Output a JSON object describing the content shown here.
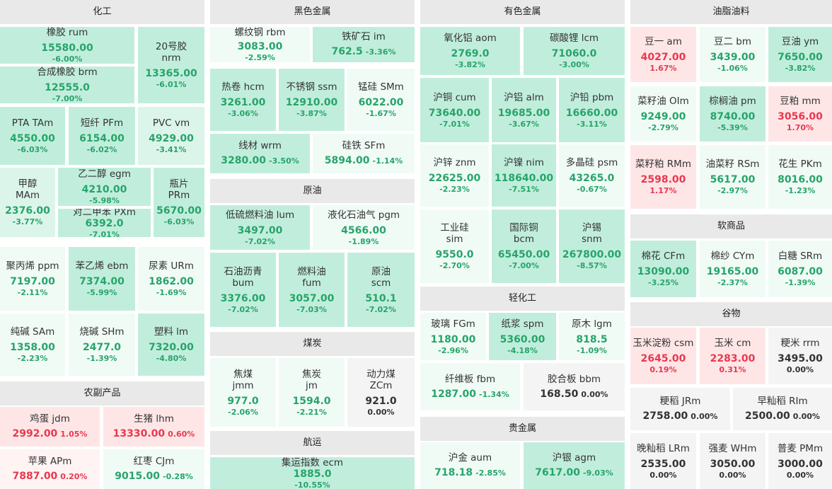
{
  "sections": {
    "chem": "化工",
    "agri": "农副产品",
    "ferrous": "黑色金属",
    "crude": "原油",
    "coal": "煤炭",
    "shipping": "航运",
    "nonferrous": "有色金属",
    "light": "轻化工",
    "precious": "贵金属",
    "oils": "油脂油料",
    "softs": "软商品",
    "grains": "谷物"
  },
  "tiles": [
    {
      "id": "rum",
      "name": "橡胶  rum",
      "price": "15580.00",
      "change": "-6.00%"
    },
    {
      "id": "nrm",
      "name": "20号胶",
      "code": "nrm",
      "price": "13365.00",
      "change": "-6.01%"
    },
    {
      "id": "brm",
      "name": "合成橡胶  brm",
      "price": "12555.0",
      "change": "-7.00%"
    },
    {
      "id": "TAm",
      "name": "PTA  TAm",
      "price": "4550.00",
      "change": "-6.03%"
    },
    {
      "id": "PFm",
      "name": "短纤  PFm",
      "price": "6154.00",
      "change": "-6.02%"
    },
    {
      "id": "vm",
      "name": "PVC  vm",
      "price": "4929.00",
      "change": "-3.41%"
    },
    {
      "id": "MAm",
      "name": "甲醇",
      "code": "MAm",
      "price": "2376.00",
      "change": "-3.77%"
    },
    {
      "id": "egm",
      "name": "乙二醇  egm",
      "price": "4210.00",
      "change": "-5.98%"
    },
    {
      "id": "PRm",
      "name": "瓶片",
      "code": "PRm",
      "price": "5670.00",
      "change": "-6.03%"
    },
    {
      "id": "PXm",
      "name": "对二甲苯  PXm",
      "price": "6392.0",
      "change": "-7.01%"
    },
    {
      "id": "ppm",
      "name": "聚丙烯  ppm",
      "price": "7197.00",
      "change": "-2.11%"
    },
    {
      "id": "ebm",
      "name": "苯乙烯  ebm",
      "price": "7374.00",
      "change": "-5.99%"
    },
    {
      "id": "URm",
      "name": "尿素  URm",
      "price": "1862.00",
      "change": "-1.69%"
    },
    {
      "id": "SAm",
      "name": "纯碱  SAm",
      "price": "1358.00",
      "change": "-2.23%"
    },
    {
      "id": "SHm",
      "name": "烧碱  SHm",
      "price": "2477.0",
      "change": "-1.39%"
    },
    {
      "id": "lm",
      "name": "塑料  lm",
      "price": "7320.00",
      "change": "-4.80%"
    },
    {
      "id": "jdm",
      "name": "鸡蛋  jdm",
      "price": "2992.00",
      "change": "1.05%"
    },
    {
      "id": "lhm",
      "name": "生猪  lhm",
      "price": "13330.00",
      "change": "0.60%"
    },
    {
      "id": "APm",
      "name": "苹果  APm",
      "price": "7887.00",
      "change": "0.20%"
    },
    {
      "id": "CJm",
      "name": "红枣  CJm",
      "price": "9015.00",
      "change": "-0.28%"
    },
    {
      "id": "rbm",
      "name": "螺纹钢  rbm",
      "price": "3083.00",
      "change": "-2.59%"
    },
    {
      "id": "im",
      "name": "铁矿石  im",
      "price": "762.5",
      "change": "-3.36%"
    },
    {
      "id": "hcm",
      "name": "热卷  hcm",
      "price": "3261.00",
      "change": "-3.06%"
    },
    {
      "id": "ssm",
      "name": "不锈钢  ssm",
      "price": "12910.00",
      "change": "-3.87%"
    },
    {
      "id": "SMm",
      "name": "锰硅  SMm",
      "price": "6022.00",
      "change": "-1.67%"
    },
    {
      "id": "wrm",
      "name": "线材  wrm",
      "price": "3280.00",
      "change": "-3.50%"
    },
    {
      "id": "SFm",
      "name": "硅铁  SFm",
      "price": "5894.00",
      "change": "-1.14%"
    },
    {
      "id": "lum",
      "name": "低硫燃料油  lum",
      "price": "3497.00",
      "change": "-7.02%"
    },
    {
      "id": "pgm",
      "name": "液化石油气  pgm",
      "price": "4566.00",
      "change": "-1.89%"
    },
    {
      "id": "bum",
      "name": "石油沥青",
      "code": "bum",
      "price": "3376.00",
      "change": "-7.02%"
    },
    {
      "id": "fum",
      "name": "燃料油",
      "code": "fum",
      "price": "3057.00",
      "change": "-7.03%"
    },
    {
      "id": "scm",
      "name": "原油",
      "code": "scm",
      "price": "510.1",
      "change": "-7.02%"
    },
    {
      "id": "jmm",
      "name": "焦煤",
      "code": "jmm",
      "price": "977.0",
      "change": "-2.06%"
    },
    {
      "id": "jm",
      "name": "焦炭",
      "code": "jm",
      "price": "1594.0",
      "change": "-2.21%"
    },
    {
      "id": "ZCm",
      "name": "动力煤",
      "code": "ZCm",
      "price": "921.0",
      "change": "0.00%"
    },
    {
      "id": "ecm",
      "name": "集运指数  ecm",
      "price": "1885.0",
      "change": "-10.55%"
    },
    {
      "id": "aom",
      "name": "氧化铝  aom",
      "price": "2769.0",
      "change": "-3.82%"
    },
    {
      "id": "lcm",
      "name": "碳酸锂  lcm",
      "price": "71060.0",
      "change": "-3.00%"
    },
    {
      "id": "cum",
      "name": "沪铜  cum",
      "price": "73640.00",
      "change": "-7.01%"
    },
    {
      "id": "alm",
      "name": "沪铝  alm",
      "price": "19685.00",
      "change": "-3.67%"
    },
    {
      "id": "pbm",
      "name": "沪铅  pbm",
      "price": "16660.00",
      "change": "-3.11%"
    },
    {
      "id": "znm",
      "name": "沪锌  znm",
      "price": "22625.00",
      "change": "-2.23%"
    },
    {
      "id": "nim",
      "name": "沪镍  nim",
      "price": "118640.00",
      "change": "-7.51%"
    },
    {
      "id": "psm",
      "name": "多晶硅  psm",
      "price": "43265.0",
      "change": "-0.67%"
    },
    {
      "id": "sim",
      "name": "工业硅",
      "code": "sim",
      "price": "9550.0",
      "change": "-2.70%"
    },
    {
      "id": "bcm",
      "name": "国际铜",
      "code": "bcm",
      "price": "65450.00",
      "change": "-7.00%"
    },
    {
      "id": "snm",
      "name": "沪锡",
      "code": "snm",
      "price": "267800.00",
      "change": "-8.57%"
    },
    {
      "id": "FGm",
      "name": "玻璃  FGm",
      "price": "1180.00",
      "change": "-2.96%"
    },
    {
      "id": "spm",
      "name": "纸浆  spm",
      "price": "5360.00",
      "change": "-4.18%"
    },
    {
      "id": "lgm",
      "name": "原木  lgm",
      "price": "818.5",
      "change": "-1.09%"
    },
    {
      "id": "fbm",
      "name": "纤维板  fbm",
      "price": "1287.00",
      "change": "-1.34%"
    },
    {
      "id": "bbm",
      "name": "胶合板  bbm",
      "price": "168.50",
      "change": "0.00%"
    },
    {
      "id": "aum",
      "name": "沪金  aum",
      "price": "718.18",
      "change": "-2.85%"
    },
    {
      "id": "agm",
      "name": "沪银  agm",
      "price": "7617.00",
      "change": "-9.03%"
    },
    {
      "id": "am",
      "name": "豆一  am",
      "price": "4027.00",
      "change": "1.67%"
    },
    {
      "id": "bm",
      "name": "豆二  bm",
      "price": "3439.00",
      "change": "-1.06%"
    },
    {
      "id": "ym",
      "name": "豆油  ym",
      "price": "7650.00",
      "change": "-3.82%"
    },
    {
      "id": "OIm",
      "name": "菜籽油  OIm",
      "price": "9249.00",
      "change": "-2.79%"
    },
    {
      "id": "pm",
      "name": "棕榈油  pm",
      "price": "8740.00",
      "change": "-5.39%"
    },
    {
      "id": "mm",
      "name": "豆粕  mm",
      "price": "3056.00",
      "change": "1.70%"
    },
    {
      "id": "RMm",
      "name": "菜籽粕  RMm",
      "price": "2598.00",
      "change": "1.17%"
    },
    {
      "id": "RSm",
      "name": "油菜籽  RSm",
      "price": "5617.00",
      "change": "-2.97%"
    },
    {
      "id": "PKm",
      "name": "花生  PKm",
      "price": "8016.00",
      "change": "-1.23%"
    },
    {
      "id": "CFm",
      "name": "棉花  CFm",
      "price": "13090.00",
      "change": "-3.25%"
    },
    {
      "id": "CYm",
      "name": "棉纱  CYm",
      "price": "19165.00",
      "change": "-2.37%"
    },
    {
      "id": "SRm",
      "name": "白糖  SRm",
      "price": "6087.00",
      "change": "-1.39%"
    },
    {
      "id": "csm",
      "name": "玉米淀粉  csm",
      "price": "2645.00",
      "change": "0.19%"
    },
    {
      "id": "cm",
      "name": "玉米  cm",
      "price": "2283.00",
      "change": "0.31%"
    },
    {
      "id": "rrm",
      "name": "粳米  rrm",
      "price": "3495.00",
      "change": "0.00%"
    },
    {
      "id": "JRm",
      "name": "粳稻  JRm",
      "price": "2758.00",
      "change": "0.00%"
    },
    {
      "id": "RIm",
      "name": "早籼稻  RIm",
      "price": "2500.00",
      "change": "0.00%"
    },
    {
      "id": "LRm",
      "name": "晚籼稻  LRm",
      "price": "2535.00",
      "change": "0.00%"
    },
    {
      "id": "WHm",
      "name": "强麦  WHm",
      "price": "3050.00",
      "change": "0.00%"
    },
    {
      "id": "PMm",
      "name": "普麦  PMm",
      "price": "3000.00",
      "change": "0.00%"
    }
  ]
}
